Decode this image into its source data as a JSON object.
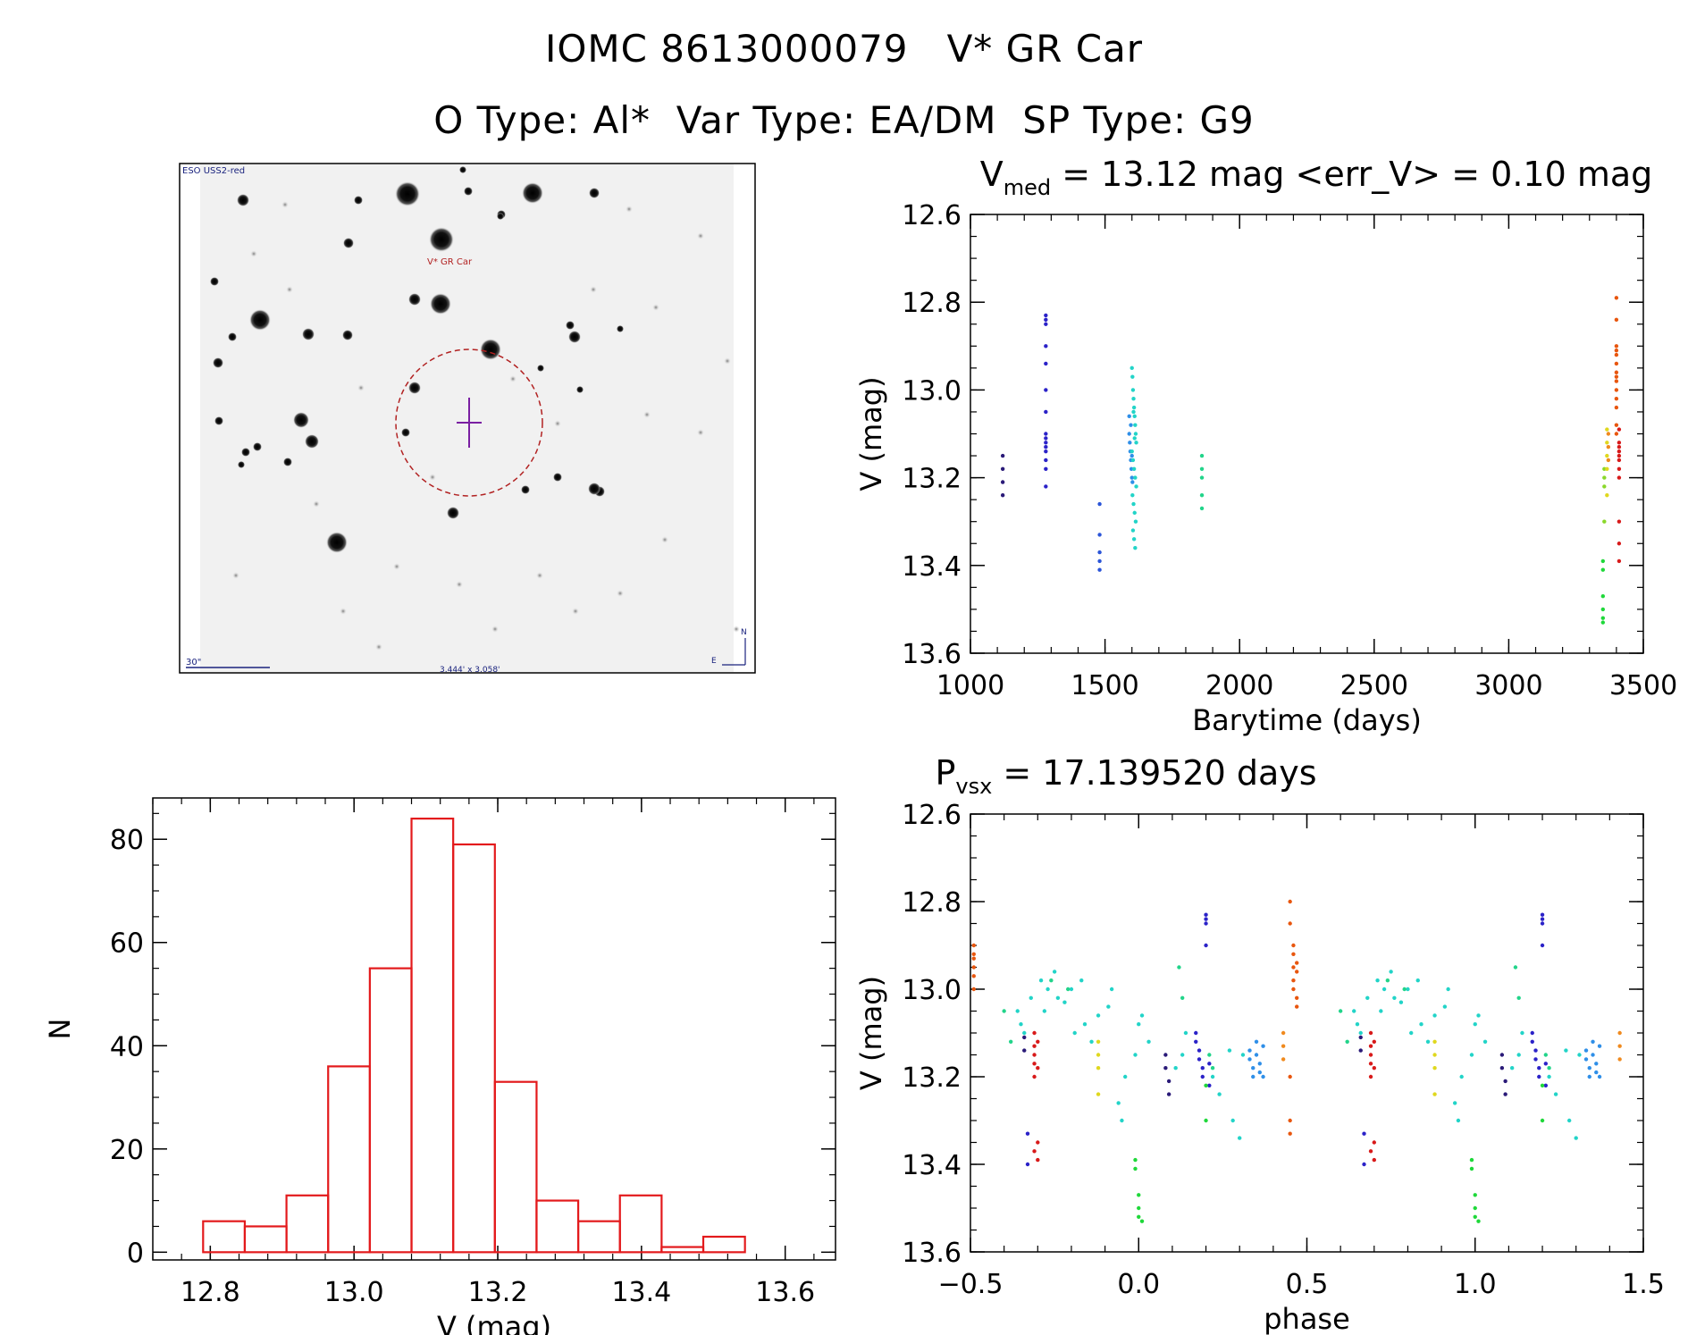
{
  "header": {
    "line1": "IOMC 8613000079   V* GR Car",
    "line2": "O Type: Al*  Var Type: EA/DM  SP Type: G9"
  },
  "finder": {
    "survey_label": "ESO USS2-red",
    "target_label": "V* GR Car",
    "scale_label": "30\"",
    "fov_label": "3.444' x 3.058'",
    "north_label": "N",
    "east_label": "E"
  },
  "colors": {
    "histogram": "#e31a1c",
    "marker_circle": "#b22222",
    "crosshair": "#7a1fa2",
    "label_blue": "#1a237e",
    "label_red": "#b22222"
  },
  "chart_data": [
    {
      "id": "lightcurve",
      "type": "scatter",
      "title_prefix": "V",
      "title_sub": "med",
      "title_suffix": " = 13.12 mag <err_V> = 0.10 mag",
      "xlabel": "Barytime (days)",
      "ylabel": "V (mag)",
      "xlim": [
        1000,
        3500
      ],
      "ylim": [
        12.6,
        13.6
      ],
      "y_inverted": true,
      "xticks": [
        1000,
        1500,
        2000,
        2500,
        3000,
        3500
      ],
      "xtick_labels": [
        "1000",
        "1500",
        "2000",
        "2500",
        "3000",
        "3500"
      ],
      "yticks": [
        12.6,
        12.8,
        13.0,
        13.2,
        13.4,
        13.6
      ],
      "ytick_labels": [
        "12.6",
        "12.8",
        "13.0",
        "13.2",
        "13.4",
        "13.6"
      ],
      "groups": [
        {
          "color": "#2a1a78",
          "x": [
            1120,
            1120,
            1120,
            1120
          ],
          "y": [
            13.15,
            13.18,
            13.21,
            13.24
          ]
        },
        {
          "color": "#2b22c8",
          "x": [
            1280,
            1280,
            1280,
            1280,
            1280,
            1280,
            1280,
            1280,
            1280,
            1280,
            1280,
            1280,
            1280,
            1280,
            1280
          ],
          "y": [
            12.83,
            12.84,
            12.85,
            12.9,
            12.94,
            13.0,
            13.05,
            13.1,
            13.11,
            13.12,
            13.13,
            13.14,
            13.16,
            13.18,
            13.22
          ]
        },
        {
          "color": "#2b55d8",
          "x": [
            1480,
            1480,
            1480,
            1480,
            1480
          ],
          "y": [
            13.26,
            13.33,
            13.37,
            13.39,
            13.41
          ]
        },
        {
          "color": "#2f8fe8",
          "x": [
            1590,
            1592,
            1594,
            1596,
            1598,
            1600,
            1602,
            1590,
            1596,
            1600
          ],
          "y": [
            13.1,
            13.12,
            13.14,
            13.16,
            13.18,
            13.2,
            13.21,
            13.06,
            13.08,
            13.15
          ]
        },
        {
          "color": "#22d4c8",
          "x": [
            1600,
            1602,
            1604,
            1606,
            1608,
            1610,
            1612,
            1614,
            1616,
            1600,
            1604,
            1608,
            1612,
            1616,
            1602,
            1606,
            1610,
            1614,
            1604,
            1608,
            1612,
            1606,
            1610
          ],
          "y": [
            12.95,
            12.97,
            13.0,
            13.02,
            13.04,
            13.06,
            13.08,
            13.1,
            13.12,
            13.14,
            13.16,
            13.18,
            13.2,
            13.22,
            13.24,
            13.26,
            13.28,
            13.3,
            13.32,
            13.34,
            13.36,
            13.05,
            13.11
          ]
        },
        {
          "color": "#22d48a",
          "x": [
            1860,
            1860,
            1860,
            1860,
            1860
          ],
          "y": [
            13.15,
            13.18,
            13.2,
            13.24,
            13.27
          ]
        },
        {
          "color": "#1fd83a",
          "x": [
            3350,
            3350,
            3350,
            3350,
            3350,
            3350
          ],
          "y": [
            13.39,
            13.41,
            13.47,
            13.5,
            13.52,
            13.53
          ]
        },
        {
          "color": "#8ad82a",
          "x": [
            3355,
            3355,
            3355,
            3355
          ],
          "y": [
            13.18,
            13.2,
            13.22,
            13.3
          ]
        },
        {
          "color": "#e0d81e",
          "x": [
            3365,
            3365,
            3365,
            3365,
            3365
          ],
          "y": [
            13.09,
            13.12,
            13.15,
            13.18,
            13.24
          ]
        },
        {
          "color": "#f08a1e",
          "x": [
            3370,
            3370,
            3370
          ],
          "y": [
            13.1,
            13.13,
            13.16
          ]
        },
        {
          "color": "#e8560e",
          "x": [
            3400,
            3400,
            3400,
            3400,
            3400,
            3400,
            3400,
            3400,
            3400,
            3400,
            3400,
            3400,
            3400,
            3400
          ],
          "y": [
            12.79,
            12.84,
            12.9,
            12.91,
            12.92,
            12.94,
            12.96,
            12.97,
            12.98,
            13.0,
            13.02,
            13.04,
            13.08,
            13.1
          ]
        },
        {
          "color": "#d81a1a",
          "x": [
            3410,
            3410,
            3410,
            3410,
            3410,
            3410,
            3410,
            3410,
            3410,
            3410,
            3410
          ],
          "y": [
            13.09,
            13.12,
            13.13,
            13.14,
            13.15,
            13.16,
            13.18,
            13.2,
            13.3,
            13.35,
            13.39
          ]
        }
      ]
    },
    {
      "id": "histogram",
      "type": "bar",
      "xlabel": "V (mag)",
      "ylabel": "N",
      "xlim": [
        12.72,
        13.67
      ],
      "ylim": [
        -1.5,
        88
      ],
      "xticks": [
        12.8,
        13.0,
        13.2,
        13.4,
        13.6
      ],
      "xtick_labels": [
        "12.8",
        "13.0",
        "13.2",
        "13.4",
        "13.6"
      ],
      "yticks": [
        0,
        20,
        40,
        60,
        80
      ],
      "ytick_labels": [
        "0",
        "20",
        "40",
        "60",
        "80"
      ],
      "bin_edges": [
        12.79,
        12.848,
        12.906,
        12.964,
        13.022,
        13.08,
        13.138,
        13.196,
        13.254,
        13.312,
        13.37,
        13.428,
        13.486,
        13.544
      ],
      "values": [
        6,
        5,
        11,
        36,
        55,
        84,
        79,
        33,
        10,
        6,
        11,
        1,
        3
      ]
    },
    {
      "id": "phased",
      "type": "scatter",
      "title_prefix": "P",
      "title_sub": "vsx",
      "title_suffix": " = 17.139520 days",
      "xlabel": "phase",
      "ylabel": "V (mag)",
      "xlim": [
        -0.5,
        1.5
      ],
      "ylim": [
        12.6,
        13.6
      ],
      "y_inverted": true,
      "xticks": [
        -0.5,
        0.0,
        0.5,
        1.0,
        1.5
      ],
      "xtick_labels": [
        "−0.5",
        "0.0",
        "0.5",
        "1.0",
        "1.5"
      ],
      "yticks": [
        12.6,
        12.8,
        13.0,
        13.2,
        13.4,
        13.6
      ],
      "ytick_labels": [
        "12.6",
        "12.8",
        "13.0",
        "13.2",
        "13.4",
        "13.6"
      ],
      "groups": [
        {
          "color": "#e8560e",
          "x": [
            -0.49,
            -0.49,
            -0.49,
            -0.49,
            -0.49,
            -0.49,
            0.45,
            0.45,
            0.46,
            0.46,
            0.46,
            0.46,
            0.46,
            0.47,
            0.47,
            0.47,
            0.47,
            0.45,
            0.45,
            0.45
          ],
          "y": [
            12.9,
            12.93,
            12.95,
            12.97,
            13.0,
            12.92,
            12.8,
            12.85,
            12.9,
            12.92,
            12.95,
            12.98,
            13.0,
            12.94,
            12.96,
            13.02,
            13.04,
            13.2,
            13.3,
            13.33
          ]
        },
        {
          "color": "#d81a1a",
          "x": [
            -0.31,
            -0.31,
            -0.31,
            -0.31,
            -0.31,
            -0.31,
            -0.3,
            -0.3,
            -0.3,
            -0.3,
            0.69,
            0.69,
            0.69,
            0.69,
            0.69,
            0.69,
            0.7,
            0.7,
            0.7,
            0.7
          ],
          "y": [
            13.1,
            13.13,
            13.15,
            13.17,
            13.2,
            13.37,
            13.39,
            13.12,
            13.18,
            13.35,
            13.1,
            13.13,
            13.15,
            13.17,
            13.2,
            13.37,
            13.39,
            13.12,
            13.18,
            13.35
          ]
        },
        {
          "color": "#2b22c8",
          "x": [
            0.17,
            0.17,
            0.18,
            0.18,
            0.19,
            0.19,
            0.2,
            0.2,
            0.2,
            0.2,
            0.21,
            0.21,
            1.17,
            1.17,
            1.18,
            1.18,
            1.19,
            1.19,
            1.2,
            1.2,
            1.2,
            1.2,
            1.21,
            1.21,
            -0.33,
            -0.33,
            0.67,
            0.67
          ],
          "y": [
            13.1,
            13.12,
            13.14,
            13.16,
            13.18,
            13.2,
            12.83,
            12.84,
            12.85,
            12.9,
            13.17,
            13.22,
            13.1,
            13.12,
            13.14,
            13.16,
            13.18,
            13.2,
            12.83,
            12.84,
            12.85,
            12.9,
            13.17,
            13.22,
            13.33,
            13.4,
            13.33,
            13.4
          ]
        },
        {
          "color": "#2a1a78",
          "x": [
            0.08,
            0.08,
            0.09,
            0.09,
            1.08,
            1.08,
            1.09,
            1.09,
            -0.34,
            -0.34,
            0.66,
            0.66
          ],
          "y": [
            13.15,
            13.18,
            13.21,
            13.24,
            13.15,
            13.18,
            13.21,
            13.24,
            13.11,
            13.14,
            13.11,
            13.14
          ]
        },
        {
          "color": "#2f8fe8",
          "x": [
            0.33,
            0.33,
            0.34,
            0.34,
            0.35,
            0.35,
            0.36,
            0.36,
            0.37,
            0.37,
            1.33,
            1.33,
            1.34,
            1.34,
            1.35,
            1.35,
            1.36,
            1.36,
            1.37,
            1.37
          ],
          "y": [
            13.14,
            13.16,
            13.18,
            13.2,
            13.12,
            13.15,
            13.17,
            13.19,
            13.13,
            13.2,
            13.14,
            13.16,
            13.18,
            13.2,
            13.12,
            13.15,
            13.17,
            13.19,
            13.13,
            13.2
          ]
        },
        {
          "color": "#22d4c8",
          "x": [
            -0.36,
            -0.35,
            -0.34,
            -0.32,
            -0.29,
            -0.28,
            -0.27,
            -0.25,
            -0.24,
            -0.22,
            -0.2,
            -0.19,
            -0.17,
            -0.16,
            -0.14,
            -0.12,
            -0.09,
            -0.08,
            -0.06,
            -0.05,
            -0.04,
            -0.01,
            0.0,
            0.01,
            0.03,
            0.11,
            0.13,
            0.14,
            0.22,
            0.24,
            0.27,
            0.28,
            0.3,
            0.31,
            0.64,
            0.65,
            0.66,
            0.68,
            0.71,
            0.72,
            0.73,
            0.75,
            0.76,
            0.78,
            0.8,
            0.81,
            0.83,
            0.84,
            0.86,
            0.88,
            0.91,
            0.92,
            0.94,
            0.95,
            0.96,
            0.99,
            1.0,
            1.01,
            1.03,
            1.11,
            1.13,
            1.14,
            1.22,
            1.24,
            1.27,
            1.28,
            1.3,
            1.31
          ],
          "y": [
            13.05,
            13.08,
            13.1,
            13.02,
            12.98,
            13.05,
            13.0,
            12.96,
            13.02,
            13.03,
            13.0,
            13.1,
            12.98,
            13.08,
            13.12,
            13.06,
            13.04,
            13.0,
            13.26,
            13.3,
            13.2,
            13.15,
            13.08,
            13.06,
            13.12,
            13.18,
            13.15,
            13.1,
            13.2,
            13.24,
            13.14,
            13.3,
            13.34,
            13.15,
            13.05,
            13.08,
            13.1,
            13.02,
            12.98,
            13.05,
            13.0,
            12.96,
            13.02,
            13.03,
            13.0,
            13.1,
            12.98,
            13.08,
            13.12,
            13.06,
            13.04,
            13.0,
            13.26,
            13.3,
            13.2,
            13.15,
            13.08,
            13.06,
            13.12,
            13.18,
            13.15,
            13.1,
            13.2,
            13.24,
            13.14,
            13.3,
            13.34,
            13.15
          ]
        },
        {
          "color": "#22d48a",
          "x": [
            -0.4,
            -0.38,
            -0.26,
            -0.21,
            0.12,
            0.13,
            0.21,
            0.22,
            0.6,
            0.62,
            0.74,
            0.79,
            1.12,
            1.13,
            1.21,
            1.22
          ],
          "y": [
            13.05,
            13.12,
            12.98,
            13.0,
            12.95,
            13.02,
            13.15,
            13.18,
            13.05,
            13.12,
            12.98,
            13.0,
            12.95,
            13.02,
            13.15,
            13.18
          ]
        },
        {
          "color": "#1fd83a",
          "x": [
            -0.01,
            -0.01,
            0.0,
            0.0,
            0.0,
            0.01,
            0.2,
            0.2,
            0.99,
            0.99,
            1.0,
            1.0,
            1.0,
            1.01,
            1.2,
            1.2
          ],
          "y": [
            13.39,
            13.41,
            13.47,
            13.5,
            13.52,
            13.53,
            13.3,
            13.22,
            13.39,
            13.41,
            13.47,
            13.5,
            13.52,
            13.53,
            13.3,
            13.22
          ]
        },
        {
          "color": "#e0d81e",
          "x": [
            -0.12,
            -0.12,
            -0.12,
            -0.12,
            0.88,
            0.88,
            0.88,
            0.88
          ],
          "y": [
            13.12,
            13.15,
            13.18,
            13.24,
            13.12,
            13.15,
            13.18,
            13.24
          ]
        },
        {
          "color": "#f08a1e",
          "x": [
            0.43,
            0.43,
            0.43,
            1.43,
            1.43,
            1.43
          ],
          "y": [
            13.1,
            13.13,
            13.16,
            13.1,
            13.13,
            13.16
          ]
        }
      ]
    }
  ]
}
